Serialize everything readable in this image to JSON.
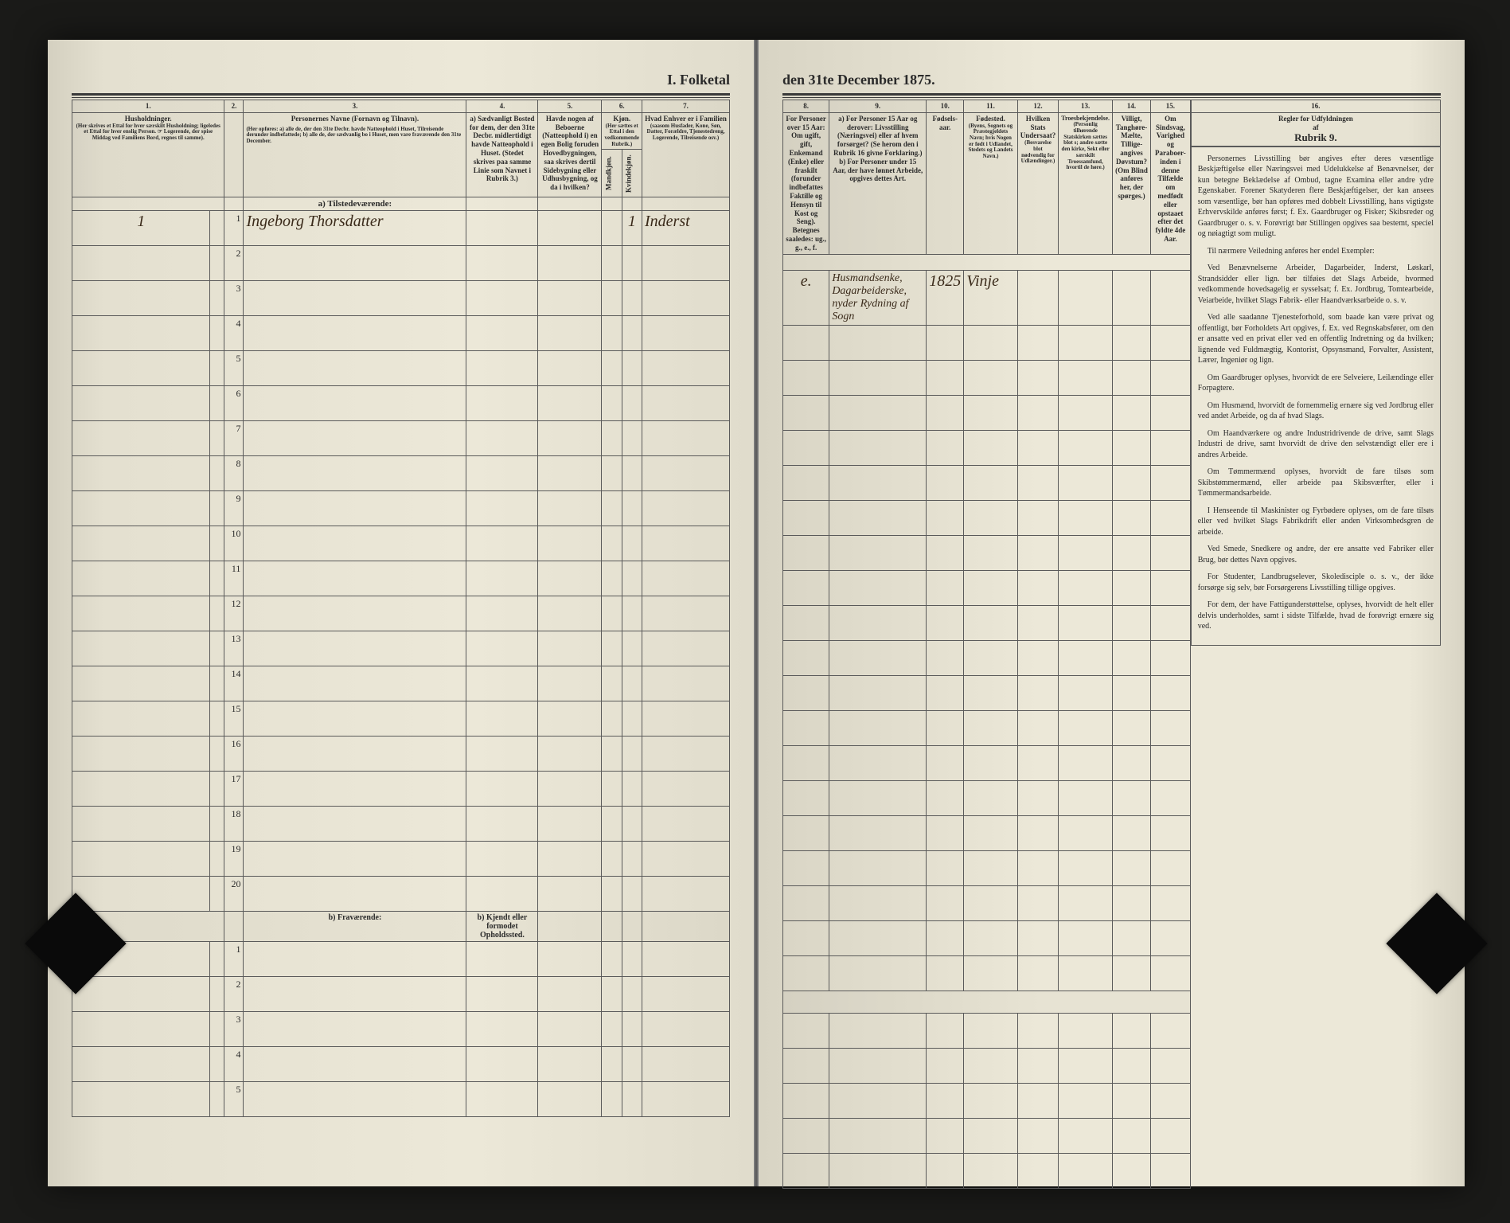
{
  "document": {
    "title_left": "I.  Folketal",
    "title_right": "den 31te December 1875.",
    "section_a": "a) Tilstedeværende:",
    "section_b": "b) Fraværende:",
    "absent_col_header": "b) Kjendt eller formodet Opholdssted."
  },
  "columns_left": {
    "c1": "1.",
    "c2": "2.",
    "c3": "3.",
    "c4": "4.",
    "c5": "5.",
    "c6": "6.",
    "c7": "7.",
    "h1": "Husholdninger.",
    "h1_note": "(Her skrives et Ettal for hver særskilt Husholdning; ligeledes et Ettal for hver enslig Person. ☞ Logerende, der spise Middag ved Familiens Bord, regnes til samme).",
    "h3": "Personernes Navne (Fornavn og Tilnavn).",
    "h3_note": "(Her opføres: a) alle de, der den 31te Decbr. havde Natteophold i Huset, Tilreisende derunder indbefattede; b) alle de, der sædvanlig bo i Huset, men vare fraværende den 31te December.",
    "h4": "a) Sædvanligt Bosted for dem, der den 31te Decbr. midlertidigt havde Natteophold i Huset. (Stedet skrives paa samme Linie som Navnet i Rubrik 3.)",
    "h5": "Havde nogen af Beboerne (Natteophold i) en egen Bolig foruden Hovedbygningen, saa skrives dertil Sidebygning eller Udhusbygning, og da i hvilken?",
    "h6": "Kjøn.",
    "h6a": "(Her sættes et Ettal i den vedkommende Rubrik.)",
    "h6_m": "Mandkjøn.",
    "h6_k": "Kvindekjøn.",
    "h7": "Hvad Enhver er i Familien",
    "h7_note": "(saasom Husfader, Kone, Søn, Datter, Forældre, Tjenestedreng, Logerende, Tilreisende osv.)"
  },
  "columns_right": {
    "c8": "8.",
    "c9": "9.",
    "c10": "10.",
    "c11": "11.",
    "c12": "12.",
    "c13": "13.",
    "c14": "14.",
    "c15": "15.",
    "c16": "16.",
    "h8": "For Personer over 15 Aar: Om ugift, gift, Enkemand (Enke) eller fraskilt (forunder indbefattes Faktille og Hensyn til Kost og Seng). Betegnes saaledes: ug., g., e., f.",
    "h9": "a) For Personer 15 Aar og derover: Livsstilling (Næringsvei) eller af hvem forsørget? (Se herom den i Rubrik 16 givne Forklaring.) b) For Personer under 15 Aar, der have lønnet Arbeide, opgives dettes Art.",
    "h10": "Fødsels-aar.",
    "h11": "Fødested.",
    "h11_note": "(Byens, Sognets og Præstegjeldets Navn; hvis Nogen er født i Udlandet, Stedets og Landets Navn.)",
    "h12": "Hvilken Stats Undersaat?",
    "h12_note": "(Besvarelse blot nødvendig for Udlændinger.)",
    "h13": "Troesbekjendelse.",
    "h13_note": "(Personlig tilhørende Statskirken sættes blot s; andre sætte den kirke, Sekt eller særskilt Troessamfund, hvortil de høre.)",
    "h14": "Villigt, Tanghøre-Mælte, Tillige-angives Døvstum?",
    "h14_note": "(Om Blind anføres her, der spørges.)",
    "h15": "Om Sindsvag, Varighed og Paraboer-inden i denne Tilfælde om medfødt eller opstaaet efter det fyldte 4de Aar.",
    "h16": "Regler for Udfyldningen af Rubrik 9."
  },
  "row_numbers": [
    "1",
    "2",
    "3",
    "4",
    "5",
    "6",
    "7",
    "8",
    "9",
    "10",
    "11",
    "12",
    "13",
    "14",
    "15",
    "16",
    "17",
    "18",
    "19",
    "20"
  ],
  "absent_row_numbers": [
    "1",
    "2",
    "3",
    "4",
    "5"
  ],
  "entries": [
    {
      "husholdning": "1",
      "person_no": "1",
      "name": "Ingeborg Thorsdatter",
      "kjon_k": "1",
      "familie": "Inderst",
      "civilstand": "e.",
      "livsstilling": "Husmandsenke, Dagarbeiderske, nyder Rydning af Sogn",
      "fodselsaar": "1825",
      "fodested": "Vinje"
    }
  ],
  "rubrik": {
    "title": "Regler for Udfyldningen",
    "sub": "af",
    "sub2": "Rubrik 9.",
    "paragraphs": [
      "Personernes Livsstilling bør angives efter deres væsentlige Beskjæftigelse eller Næringsvei med Udelukkelse af Benævnelser, der kun betegne Beklædelse af Ombud, tagne Examina eller andre ydre Egenskaber. Forener Skatyderen flere Beskjæftigelser, der kan ansees som væsentlige, bør han opføres med dobbelt Livsstilling, hans vigtigste Erhvervskilde anføres først; f. Ex. Gaardbruger og Fisker; Skibsreder og Gaardbruger o. s. v. Forøvrigt bør Stillingen opgives saa bestemt, speciel og nøiagtigt som muligt.",
      "Til nærmere Veiledning anføres her endel Exempler:",
      "Ved Benævnelserne Arbeider, Dagarbeider, Inderst, Løskarl, Strandsidder eller lign. bør tilføies det Slags Arbeide, hvormed vedkommende hovedsagelig er sysselsat; f. Ex. Jordbrug, Tomtearbeide, Veiarbeide, hvilket Slags Fabrik- eller Haandværksarbeide o. s. v.",
      "Ved alle saadanne Tjenesteforhold, som baade kan være privat og offentligt, bør Forholdets Art opgives, f. Ex. ved Regnskabsfører, om den er ansatte ved en privat eller ved en offentlig Indretning og da hvilken; lignende ved Fuldmægtig, Kontorist, Opsynsmand, Forvalter, Assistent, Lærer, Ingeniør og lign.",
      "Om Gaardbruger oplyses, hvorvidt de ere Selveiere, Leilændinge eller Forpagtere.",
      "Om Husmænd, hvorvidt de fornemmelig ernære sig ved Jordbrug eller ved andet Arbeide, og da af hvad Slags.",
      "Om Haandværkere og andre Industridrivende de drive, samt Slags Industri de drive, samt hvorvidt de drive den selvstændigt eller ere i andres Arbeide.",
      "Om Tømmermænd oplyses, hvorvidt de fare tilsøs som Skibstømmermænd, eller arbeide paa Skibsværfter, eller i Tømmermandsarbeide.",
      "I Henseende til Maskinister og Fyrbødere oplyses, om de fare tilsøs eller ved hvilket Slags Fabrikdrift eller anden Virksomhedsgren de arbeide.",
      "Ved Smede, Snedkere og andre, der ere ansatte ved Fabriker eller Brug, bør dettes Navn opgives.",
      "For Studenter, Landbrugselever, Skoledisciple o. s. v., der ikke forsørge sig selv, bør Forsørgerens Livsstilling tillige opgives.",
      "For dem, der have Fattigunderstøttelse, oplyses, hvorvidt de helt eller delvis underholdes, samt i sidste Tilfælde, hvad de forøvrigt ernære sig ved."
    ]
  },
  "style": {
    "page_bg": "#ece8d8",
    "ink": "#2a2a2a",
    "handwriting": "#3a2a1a",
    "border": "#5a5a5a",
    "heavy_rule": "#3a3a3a",
    "header_fontsize": 9,
    "title_fontsize": 18,
    "body_fontsize": 10,
    "handwriting_fontsize": 20
  }
}
